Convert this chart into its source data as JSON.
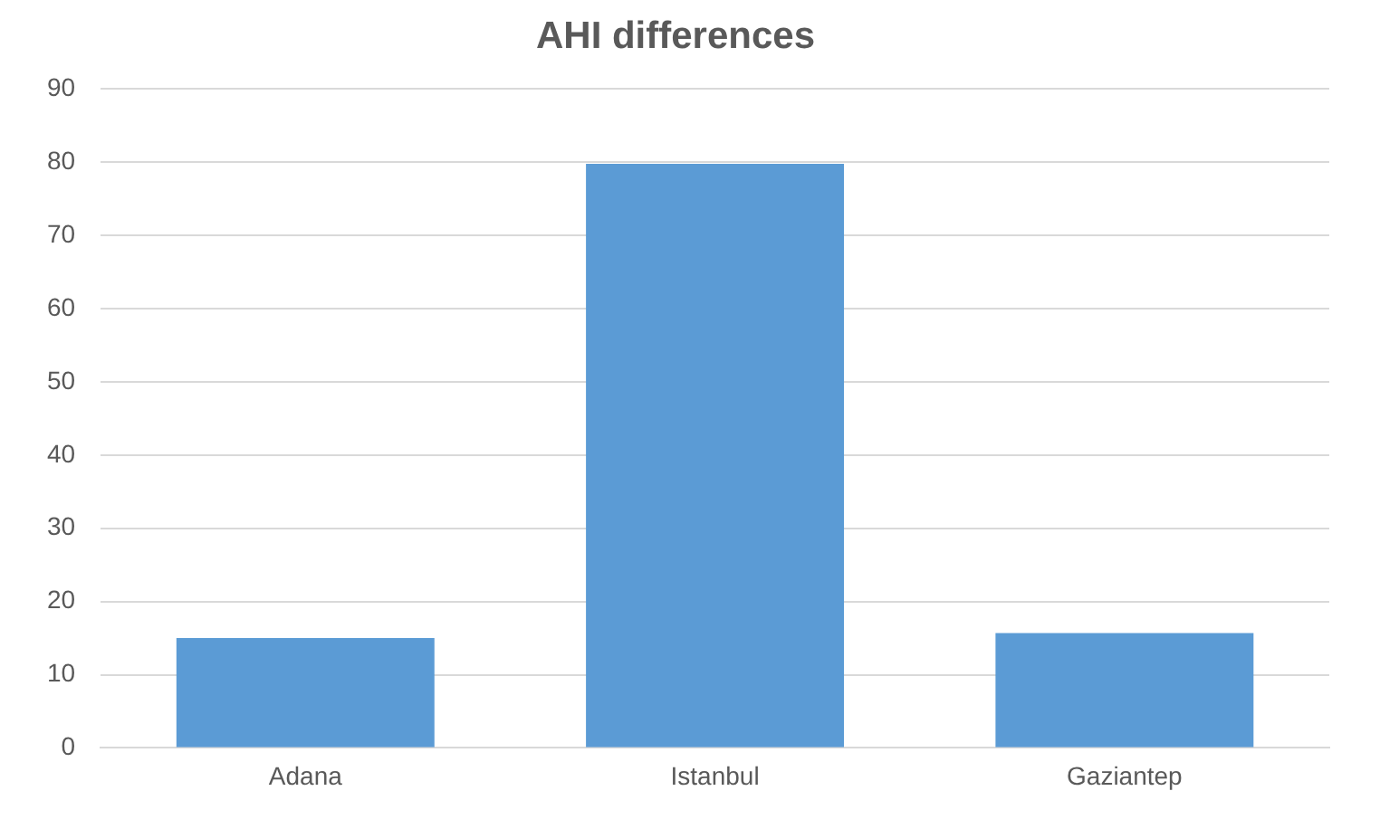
{
  "chart_data": {
    "type": "bar",
    "title": "AHI differences",
    "categories": [
      "Adana",
      "Istanbul",
      "Gaziantep"
    ],
    "values": [
      15,
      79.8,
      15.7
    ],
    "color": "#5b9bd5",
    "ylim": [
      0,
      90
    ],
    "yticks": [
      0,
      10,
      20,
      30,
      40,
      50,
      60,
      70,
      80,
      90
    ],
    "grid": "y",
    "legend": false
  }
}
